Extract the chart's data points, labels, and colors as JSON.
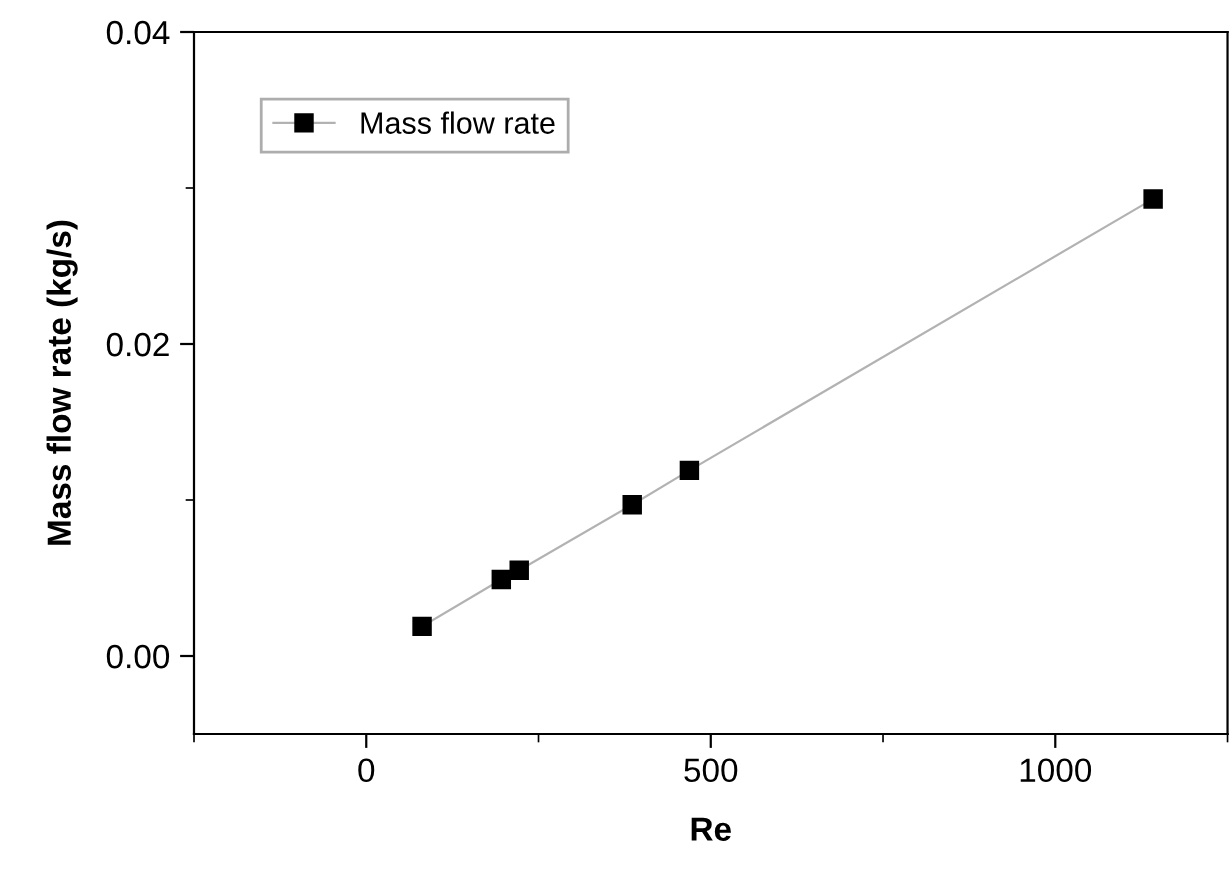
{
  "chart_data": {
    "type": "line",
    "xlabel": "Re",
    "ylabel": "Mass flow rate (kg/s)",
    "x": [
      81,
      196,
      222,
      386,
      469,
      1142
    ],
    "series": [
      {
        "name": "Mass flow rate",
        "color": "#000000",
        "values": [
          0.0019,
          0.0049,
          0.0055,
          0.0097,
          0.0119,
          0.0293
        ]
      }
    ],
    "xlim": [
      -250,
      1250
    ],
    "xticks": [
      0,
      500,
      1000
    ],
    "ylim": [
      -0.005,
      0.04
    ],
    "yticks": [
      {
        "value": 0,
        "label": "0.00"
      },
      {
        "value": 0.02,
        "label": "0.02"
      },
      {
        "value": 0.04,
        "label": "0.04"
      }
    ],
    "marker": "square",
    "line_style": "solid",
    "grid": false,
    "legend": "top left"
  }
}
